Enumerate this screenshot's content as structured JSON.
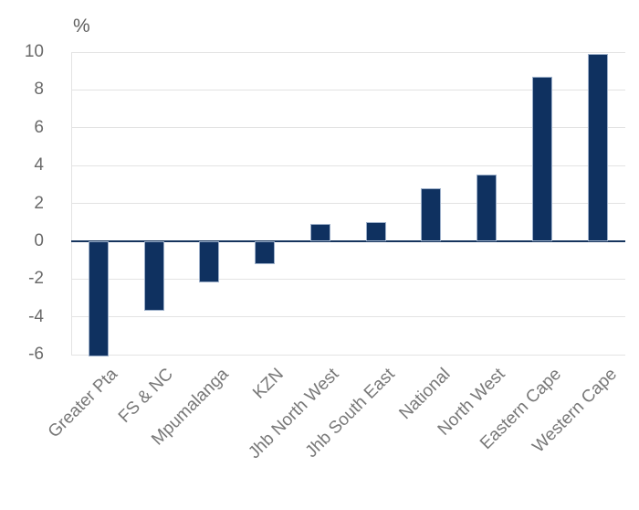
{
  "chart_data": {
    "type": "bar",
    "title": "",
    "unit_label": "%",
    "categories": [
      "Greater Pta",
      "FS & NC",
      "Mpumalanga",
      "KZN",
      "Jhb North West",
      "Jhb South East",
      "National",
      "North West",
      "Eastern Cape",
      "Western Cape"
    ],
    "values": [
      -6.1,
      -3.7,
      -2.2,
      -1.2,
      0.9,
      1.0,
      2.8,
      3.5,
      8.7,
      9.9
    ],
    "xlabel": "",
    "ylabel": "%",
    "ylim": [
      -6,
      10
    ],
    "yticks": [
      10,
      8,
      6,
      4,
      2,
      0,
      -2,
      -4,
      -6
    ],
    "grid": true,
    "legend": "none",
    "orientation": "vertical",
    "colors": {
      "bar_fill": "#0f3160",
      "bar_border": "#9db0ca",
      "zero_line": "#16355e",
      "gridline": "#e3e3e3",
      "axis_text": "#6a6a6a",
      "category_text": "#787878",
      "background": "#ffffff"
    }
  }
}
